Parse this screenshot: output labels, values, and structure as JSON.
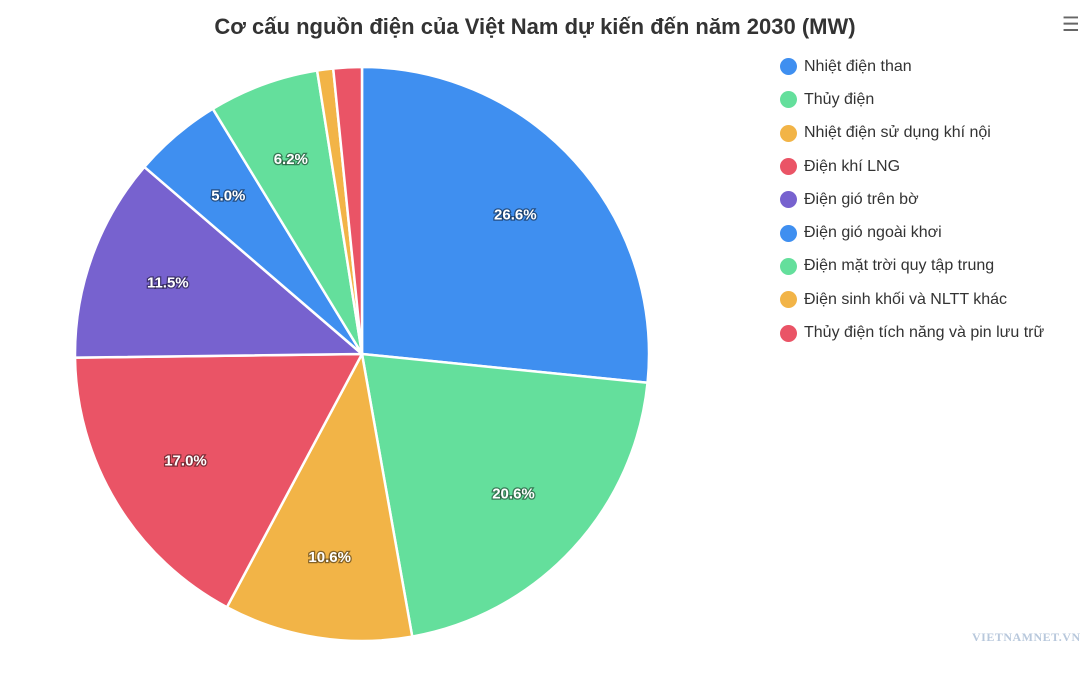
{
  "chart_data": {
    "type": "pie",
    "title": "Cơ cấu nguồn điện của Việt Nam dự kiến đến năm 2030 (MW)",
    "legend_position": "right",
    "slices": [
      {
        "label": "Nhiệt điện than",
        "percent": 26.6,
        "data_label": "26.6%",
        "color": "#3f8ff0"
      },
      {
        "label": "Thủy điện",
        "percent": 20.6,
        "data_label": "20.6%",
        "color": "#64df9c"
      },
      {
        "label": "Nhiệt điện sử dụng khí nội",
        "percent": 10.6,
        "data_label": "10.6%",
        "color": "#f2b447"
      },
      {
        "label": "Điện khí LNG",
        "percent": 17.0,
        "data_label": "17.0%",
        "color": "#ea5466"
      },
      {
        "label": "Điện gió trên bờ",
        "percent": 11.5,
        "data_label": "11.5%",
        "color": "#7762cf"
      },
      {
        "label": "Điện gió ngoài khơi",
        "percent": 5.0,
        "data_label": "5.0%",
        "color": "#3f8ff0"
      },
      {
        "label": "Điện mặt trời quy tập trung",
        "percent": 6.2,
        "data_label": "6.2%",
        "color": "#64df9c"
      },
      {
        "label": "Điện sinh khối và NLTT khác",
        "percent": 0.9,
        "data_label": "",
        "color": "#f2b447"
      },
      {
        "label": "Thủy điện tích năng và pin lưu trữ",
        "percent": 1.6,
        "data_label": "",
        "color": "#ea5466"
      }
    ]
  },
  "menu_icon": "hamburger-icon",
  "watermark": "VIETNAMNET.VN"
}
